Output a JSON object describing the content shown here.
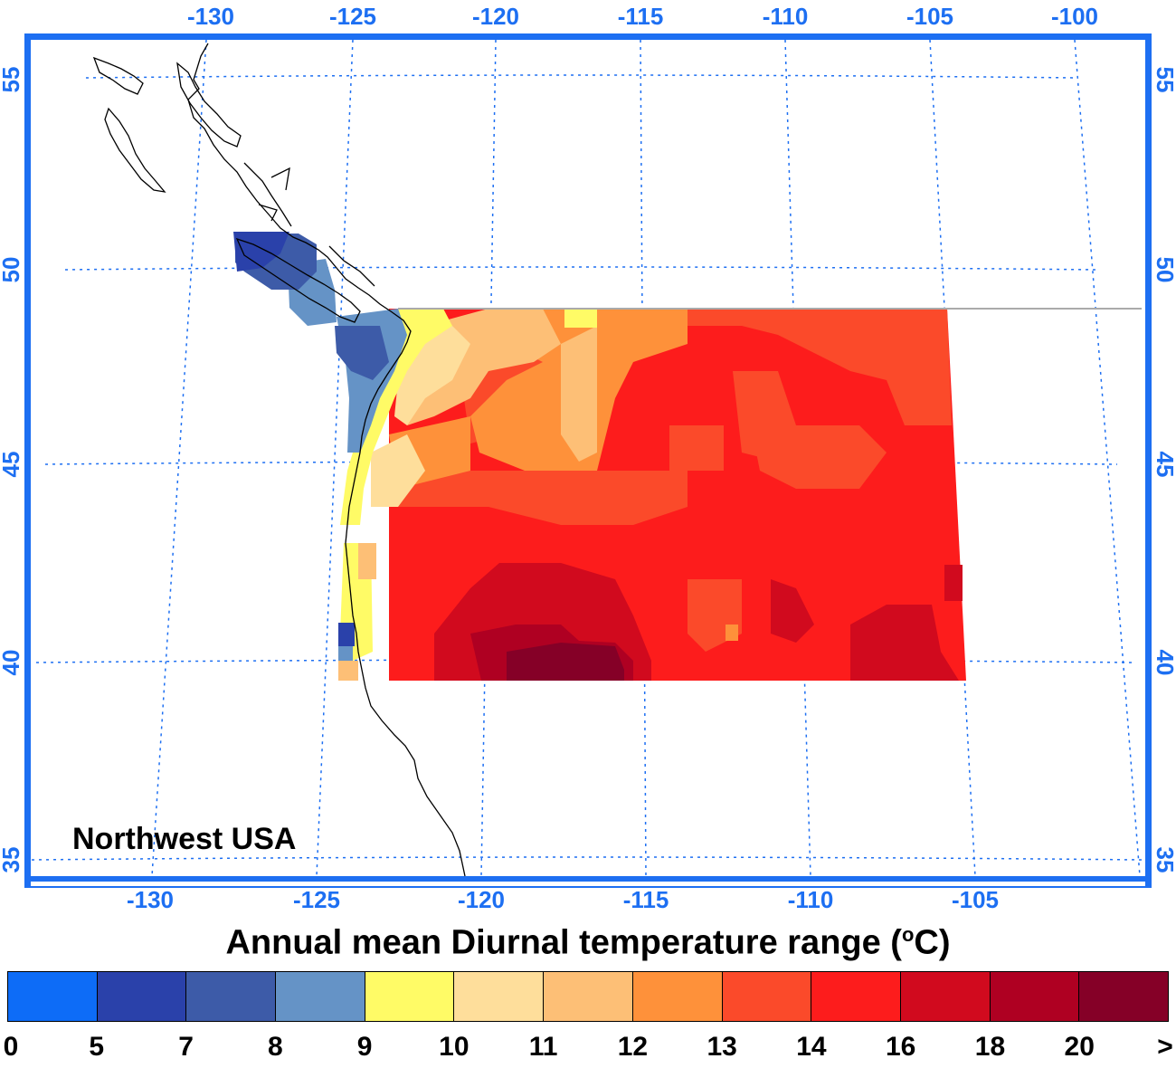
{
  "map": {
    "region_label": "Northwest USA",
    "top_lon_ticks": [
      "-130",
      "-125",
      "-120",
      "-115",
      "-110",
      "-105",
      "-100"
    ],
    "bottom_lon_ticks": [
      "-130",
      "-125",
      "-120",
      "-115",
      "-110",
      "-105"
    ],
    "left_lat_ticks": [
      "55",
      "50",
      "45",
      "40",
      "35"
    ],
    "right_lat_ticks": [
      "55",
      "50",
      "45",
      "40",
      "35"
    ],
    "colors": {
      "frame": "#1d6ff2",
      "gridline": "#1d6ff2",
      "coastline": "#000000",
      "border_line": "#aaaaaa"
    }
  },
  "title": {
    "text_before": "Annual mean Diurnal temperature range (",
    "superscript": "o",
    "text_after": "C)"
  },
  "colorbar": {
    "bins": [
      {
        "color": "#0d6cf7"
      },
      {
        "color": "#2a41aa"
      },
      {
        "color": "#3d5ba8"
      },
      {
        "color": "#6593c6"
      },
      {
        "color": "#fffb66"
      },
      {
        "color": "#fede9b"
      },
      {
        "color": "#fdbf76"
      },
      {
        "color": "#fe913a"
      },
      {
        "color": "#fb4a2a"
      },
      {
        "color": "#fd1c1c"
      },
      {
        "color": "#d10a1e"
      },
      {
        "color": "#af0022"
      },
      {
        "color": "#850027"
      }
    ],
    "labels": [
      "0",
      "5",
      "7",
      "8",
      "9",
      "10",
      "11",
      "12",
      "13",
      "14",
      "16",
      "18",
      "20",
      ">"
    ]
  }
}
